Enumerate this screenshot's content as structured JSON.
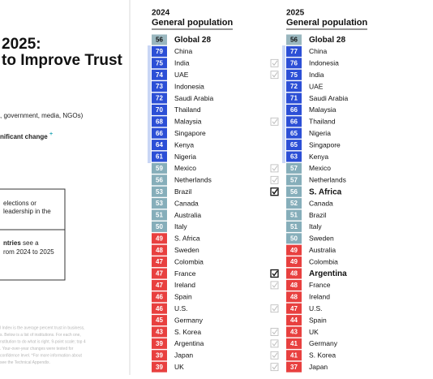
{
  "left": {
    "title_lines": [
      "2025:",
      "to Improve Trust"
    ],
    "subtitle": ", government, media, NGOs)",
    "legend_text": "nificant change",
    "legend_sup": "+",
    "box1": [
      "elections or",
      "leadership in the"
    ],
    "box2_bold": "ntries",
    "box2": [
      " see a",
      "rom 2024 to 2025"
    ],
    "footnote": [
      "l Index is the average percent trust in business,",
      "s. Below is a list of institutions. For each one,",
      "nstitution to do what is right. 9-point scale; top 4",
      ". Your-over-year changes were tested for",
      "confidence level. *For more information about",
      "see the Technical Appendix."
    ]
  },
  "columns": [
    {
      "year": "2024",
      "subtitle": "General population",
      "rows": [
        {
          "value": 56,
          "label": "Global 28",
          "color": "#9ab7bf",
          "bold": true
        },
        {
          "value": 79,
          "label": "China",
          "color": "#2c4fd6"
        },
        {
          "value": 75,
          "label": "India",
          "color": "#2c4fd6"
        },
        {
          "value": 74,
          "label": "UAE",
          "color": "#2c4fd6"
        },
        {
          "value": 73,
          "label": "Indonesia",
          "color": "#2c4fd6"
        },
        {
          "value": 72,
          "label": "Saudi Arabia",
          "color": "#2c4fd6"
        },
        {
          "value": 70,
          "label": "Thailand",
          "color": "#2c4fd6"
        },
        {
          "value": 68,
          "label": "Malaysia",
          "color": "#2c4fd6"
        },
        {
          "value": 66,
          "label": "Singapore",
          "color": "#2c4fd6"
        },
        {
          "value": 64,
          "label": "Kenya",
          "color": "#2c4fd6"
        },
        {
          "value": 61,
          "label": "Nigeria",
          "color": "#2c4fd6"
        },
        {
          "value": 59,
          "label": "Mexico",
          "color": "#86aeba"
        },
        {
          "value": 56,
          "label": "Netherlands",
          "color": "#86aeba"
        },
        {
          "value": 53,
          "label": "Brazil",
          "color": "#86aeba"
        },
        {
          "value": 53,
          "label": "Canada",
          "color": "#86aeba"
        },
        {
          "value": 51,
          "label": "Australia",
          "color": "#86aeba"
        },
        {
          "value": 50,
          "label": "Italy",
          "color": "#86aeba"
        },
        {
          "value": 49,
          "label": "S. Africa",
          "color": "#e8403f"
        },
        {
          "value": 48,
          "label": "Sweden",
          "color": "#e8403f"
        },
        {
          "value": 47,
          "label": "Colombia",
          "color": "#e8403f"
        },
        {
          "value": 47,
          "label": "France",
          "color": "#e8403f"
        },
        {
          "value": 47,
          "label": "Ireland",
          "color": "#e8403f"
        },
        {
          "value": 46,
          "label": "Spain",
          "color": "#e8403f"
        },
        {
          "value": 46,
          "label": "U.S.",
          "color": "#e8403f"
        },
        {
          "value": 45,
          "label": "Germany",
          "color": "#e8403f"
        },
        {
          "value": 43,
          "label": "S. Korea",
          "color": "#e8403f"
        },
        {
          "value": 39,
          "label": "Argentina",
          "color": "#e8403f"
        },
        {
          "value": 39,
          "label": "Japan",
          "color": "#e8403f"
        },
        {
          "value": 39,
          "label": "UK",
          "color": "#e8403f"
        }
      ]
    },
    {
      "year": "2025",
      "subtitle": "General population",
      "rows": [
        {
          "value": 56,
          "label": "Global 28",
          "color": "#9ab7bf",
          "bold": true
        },
        {
          "value": 77,
          "label": "China",
          "color": "#2c4fd6"
        },
        {
          "value": 76,
          "label": "Indonesia",
          "color": "#2c4fd6",
          "marker": "box"
        },
        {
          "value": 75,
          "label": "India",
          "color": "#2c4fd6",
          "marker": "box"
        },
        {
          "value": 72,
          "label": "UAE",
          "color": "#2c4fd6"
        },
        {
          "value": 71,
          "label": "Saudi Arabia",
          "color": "#2c4fd6"
        },
        {
          "value": 66,
          "label": "Malaysia",
          "color": "#2c4fd6"
        },
        {
          "value": 66,
          "label": "Thailand",
          "color": "#2c4fd6",
          "marker": "box"
        },
        {
          "value": 65,
          "label": "Nigeria",
          "color": "#2c4fd6"
        },
        {
          "value": 65,
          "label": "Singapore",
          "color": "#2c4fd6"
        },
        {
          "value": 63,
          "label": "Kenya",
          "color": "#2c4fd6"
        },
        {
          "value": 57,
          "label": "Mexico",
          "color": "#86aeba",
          "marker": "box"
        },
        {
          "value": 57,
          "label": "Netherlands",
          "color": "#86aeba",
          "marker": "box"
        },
        {
          "value": 56,
          "label": "S. Africa",
          "color": "#86aeba",
          "bold": true,
          "marker": "checked"
        },
        {
          "value": 52,
          "label": "Canada",
          "color": "#86aeba"
        },
        {
          "value": 51,
          "label": "Brazil",
          "color": "#86aeba"
        },
        {
          "value": 51,
          "label": "Italy",
          "color": "#86aeba"
        },
        {
          "value": 50,
          "label": "Sweden",
          "color": "#86aeba"
        },
        {
          "value": 49,
          "label": "Australia",
          "color": "#e8403f"
        },
        {
          "value": 49,
          "label": "Colombia",
          "color": "#e8403f"
        },
        {
          "value": 48,
          "label": "Argentina",
          "color": "#e8403f",
          "bold": true,
          "marker": "checked"
        },
        {
          "value": 48,
          "label": "France",
          "color": "#e8403f",
          "marker": "box"
        },
        {
          "value": 48,
          "label": "Ireland",
          "color": "#e8403f"
        },
        {
          "value": 47,
          "label": "U.S.",
          "color": "#e8403f",
          "marker": "box"
        },
        {
          "value": 44,
          "label": "Spain",
          "color": "#e8403f"
        },
        {
          "value": 43,
          "label": "UK",
          "color": "#e8403f",
          "marker": "box"
        },
        {
          "value": 41,
          "label": "Germany",
          "color": "#e8403f",
          "marker": "box"
        },
        {
          "value": 41,
          "label": "S. Korea",
          "color": "#e8403f",
          "marker": "box"
        },
        {
          "value": 37,
          "label": "Japan",
          "color": "#e8403f",
          "marker": "box"
        }
      ]
    }
  ]
}
